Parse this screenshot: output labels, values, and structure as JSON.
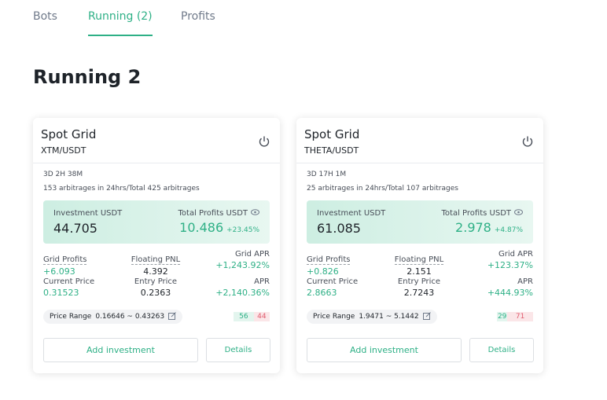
{
  "tabs": [
    "Bots",
    "Running (2)",
    "Profits"
  ],
  "active_tab": 1,
  "heading": "Running 2",
  "cards": [
    {
      "title": "Spot Grid",
      "pair": "XTM/USDT",
      "duration": "3D 2H 38M",
      "arbitrages": "153 arbitrages in 24hrs/Total 425 arbitrages",
      "investment_label": "Investment USDT",
      "investment": "44.705",
      "total_profits_label": "Total Profits USDT",
      "total_profits": "10.486",
      "total_profits_pct": "+23.45%",
      "stats": [
        {
          "label": "Grid Profits",
          "value": "+6.093"
        },
        {
          "label": "Floating PNL",
          "value": "4.392"
        },
        {
          "label": "Grid APR",
          "value": "+1,243.92%"
        },
        {
          "label": "Current Price",
          "value": "0.31523"
        },
        {
          "label": "Entry Price",
          "value": "0.2363"
        },
        {
          "label": "APR",
          "value": "+2,140.36%"
        }
      ],
      "price_range_label": "Price Range",
      "price_range": "0.16646 ~ 0.43263",
      "buy": 56,
      "sell": 44,
      "add_button": "Add investment",
      "details_button": "Details"
    },
    {
      "title": "Spot Grid",
      "pair": "THETA/USDT",
      "duration": "3D 17H 1M",
      "arbitrages": "25 arbitrages in 24hrs/Total 107 arbitrages",
      "investment_label": "Investment USDT",
      "investment": "61.085",
      "total_profits_label": "Total Profits USDT",
      "total_profits": "2.978",
      "total_profits_pct": "+4.87%",
      "stats": [
        {
          "label": "Grid Profits",
          "value": "+0.826"
        },
        {
          "label": "Floating PNL",
          "value": "2.151"
        },
        {
          "label": "Grid APR",
          "value": "+123.37%"
        },
        {
          "label": "Current Price",
          "value": "2.8663"
        },
        {
          "label": "Entry Price",
          "value": "2.7243"
        },
        {
          "label": "APR",
          "value": "+444.93%"
        }
      ],
      "price_range_label": "Price Range",
      "price_range": "1.9471 ~ 5.1442",
      "buy": 29,
      "sell": 71,
      "add_button": "Add investment",
      "details_button": "Details"
    }
  ]
}
